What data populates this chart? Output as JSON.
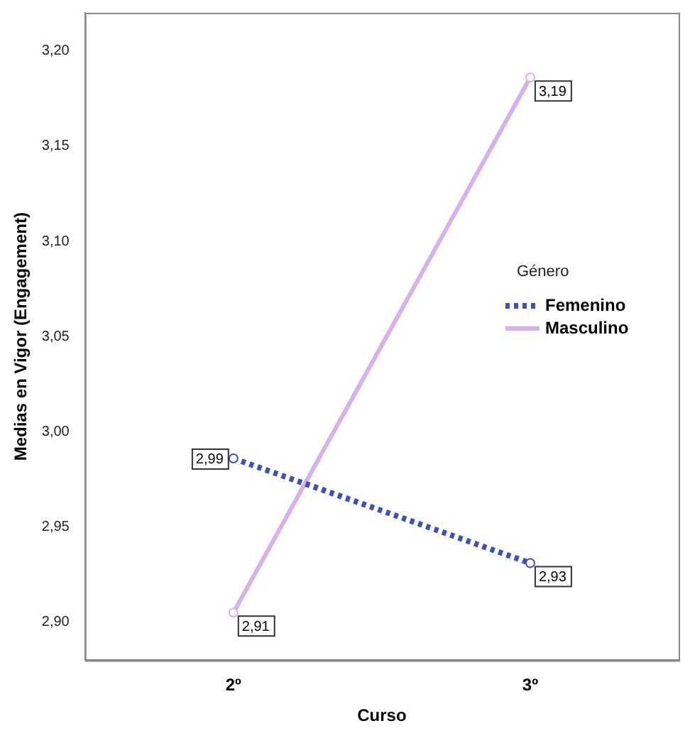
{
  "chart_data": {
    "type": "line",
    "xlabel": "Curso",
    "ylabel": "Medias en Vigor (Engagement)",
    "legend_title": "Género",
    "categories": [
      "2º",
      "3º"
    ],
    "series": [
      {
        "name": "Femenino",
        "color": "#3f51b5",
        "values": [
          2.986,
          2.931
        ],
        "value_labels": [
          "2,99",
          "2,93"
        ],
        "line_style": "dotted"
      },
      {
        "name": "Masculino",
        "color": "#d8b0ec",
        "values": [
          2.905,
          3.186
        ],
        "value_labels": [
          "2,91",
          "3,19"
        ],
        "line_style": "solid"
      }
    ],
    "ylim": [
      2.88,
      3.22
    ],
    "yticks": [
      {
        "value": 2.9,
        "label": "2,90"
      },
      {
        "value": 2.95,
        "label": "2,95"
      },
      {
        "value": 3.0,
        "label": "3,00"
      },
      {
        "value": 3.05,
        "label": "3,05"
      },
      {
        "value": 3.1,
        "label": "3,10"
      },
      {
        "value": 3.15,
        "label": "3,15"
      },
      {
        "value": 3.2,
        "label": "3,20"
      }
    ],
    "grid": false,
    "legend": "right",
    "marker": "circle"
  }
}
